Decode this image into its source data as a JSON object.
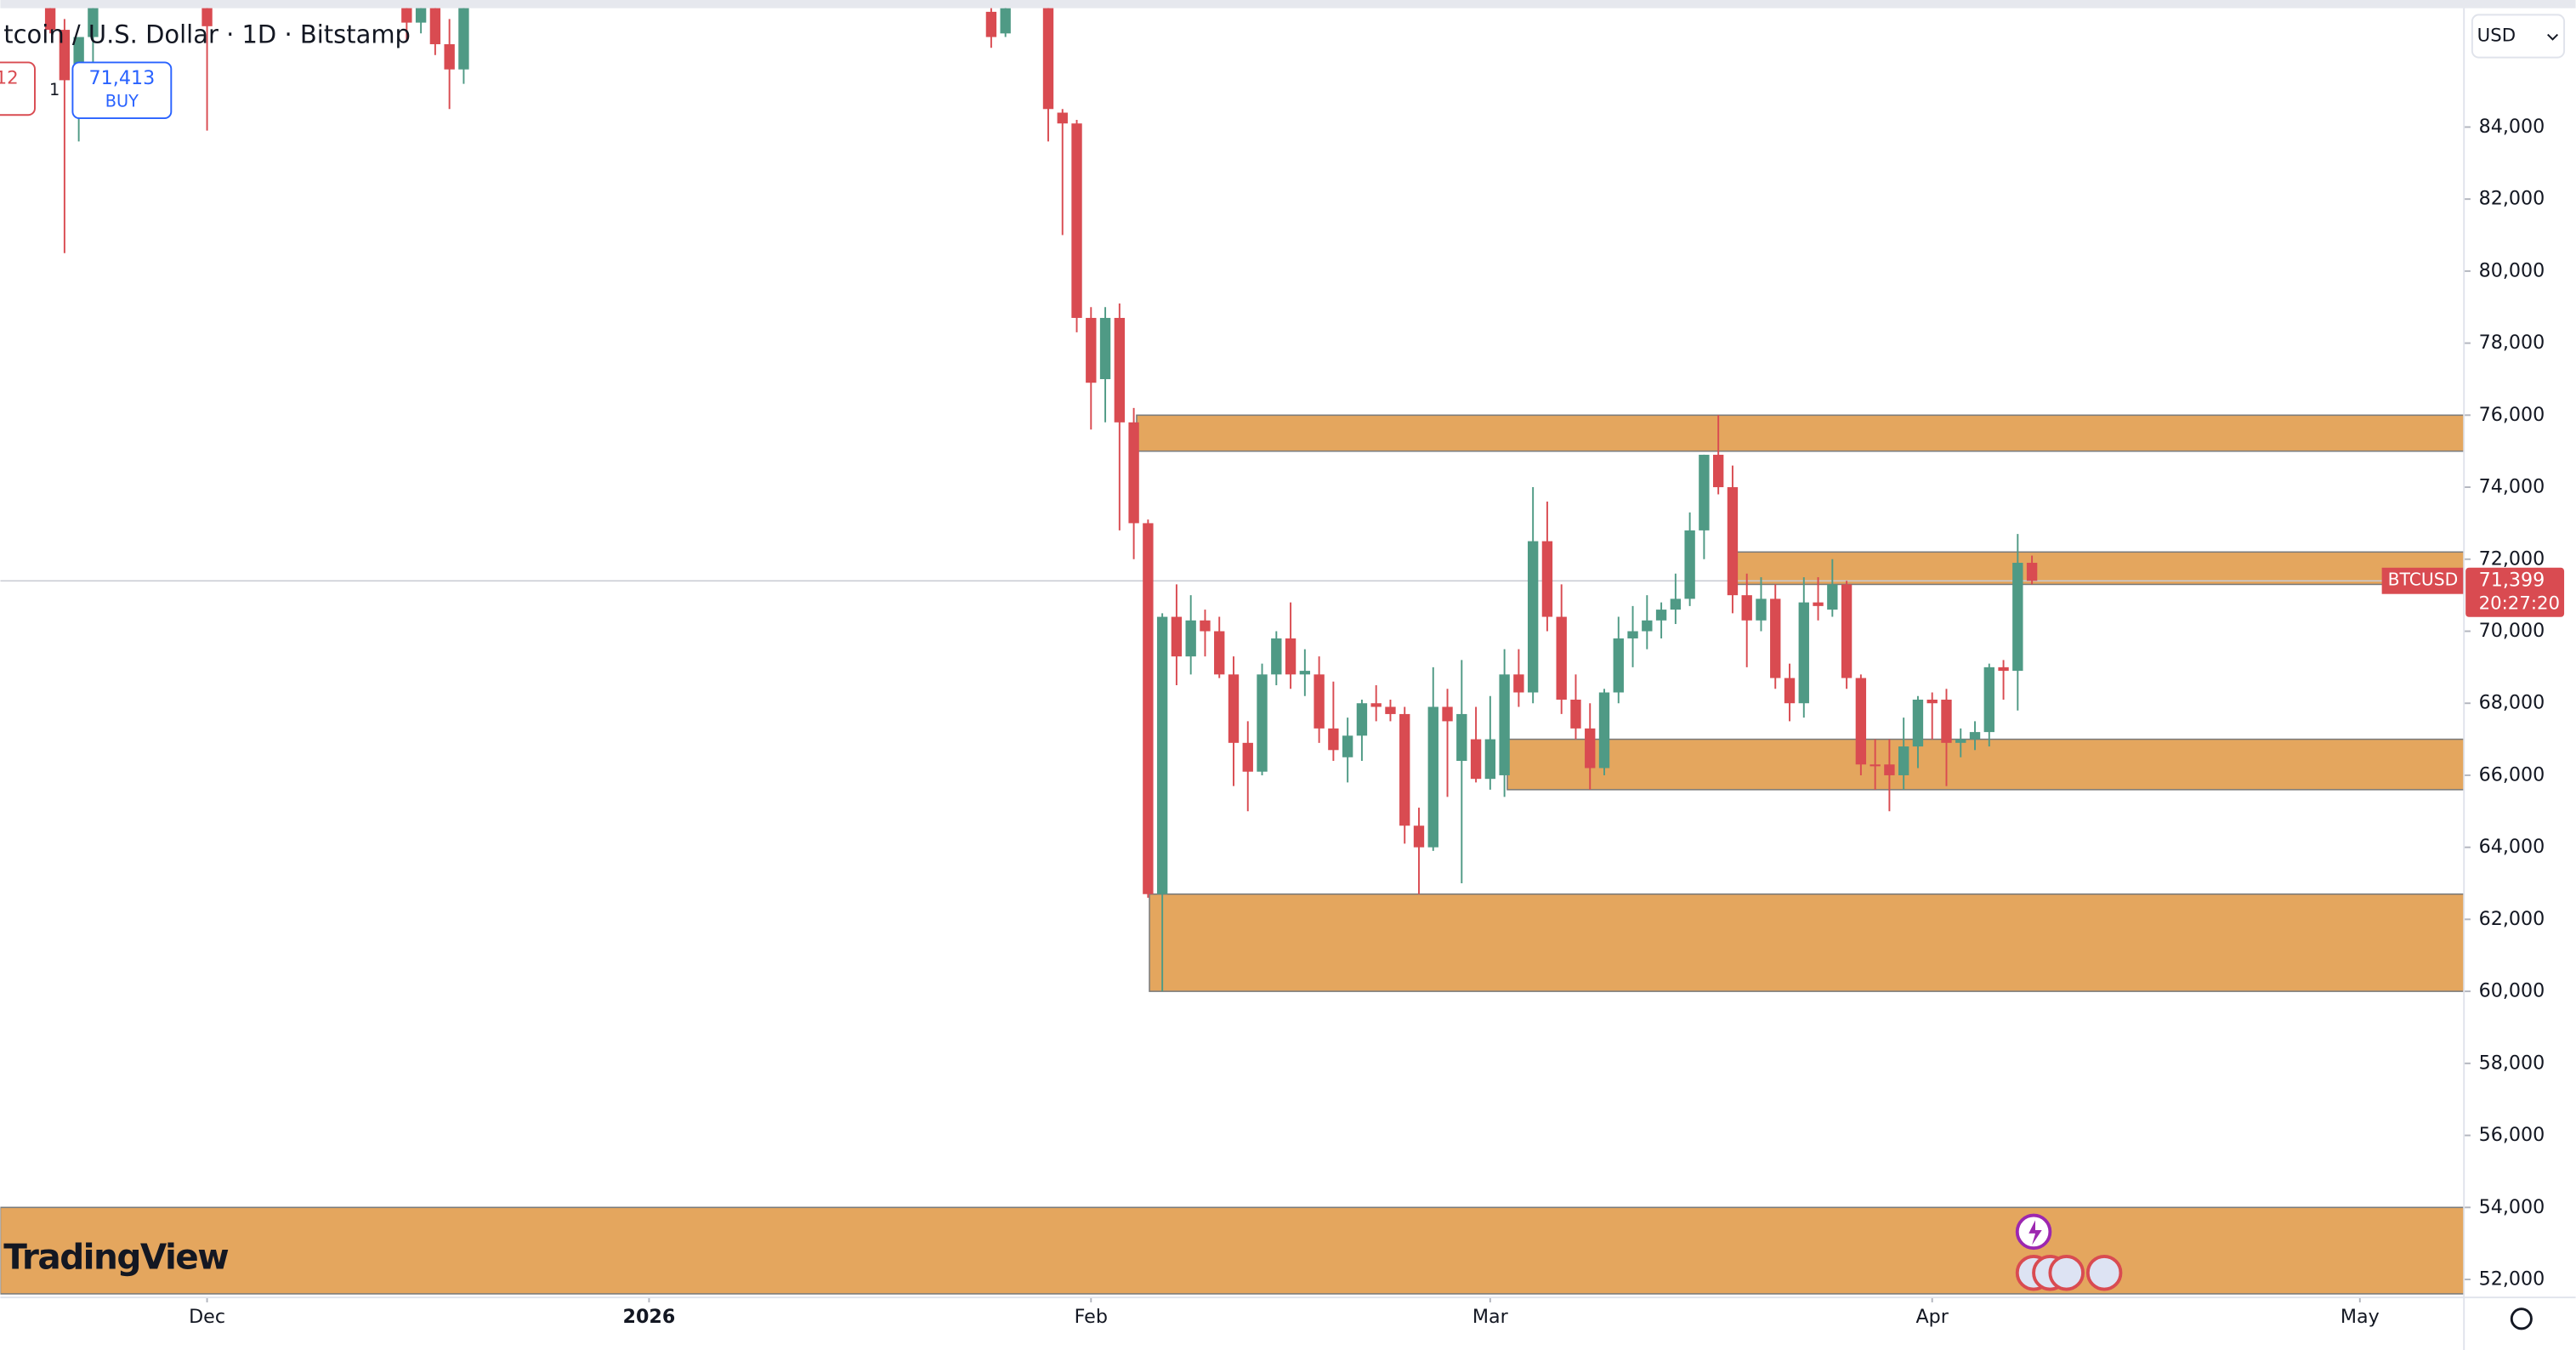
{
  "chart_data": {
    "type": "candlestick",
    "title": "tcoin / U.S. Dollar · 1D · Bitstamp",
    "currency": "USD",
    "up_color": "#4f9a85",
    "down_color": "#d94b51",
    "zone_color": "#e4a65e",
    "xlim": [
      -14.5,
      158.3
    ],
    "xticks": [
      {
        "value": 0,
        "label": "Dec"
      },
      {
        "value": 31,
        "label": "2026"
      },
      {
        "value": 62,
        "label": "Feb"
      },
      {
        "value": 90,
        "label": "Mar"
      },
      {
        "value": 121,
        "label": "Apr"
      },
      {
        "value": 151,
        "label": "May"
      }
    ],
    "ylim": [
      51500,
      87300
    ],
    "yticks": [
      {
        "value": 52000,
        "label": "52,000"
      },
      {
        "value": 54000,
        "label": "54,000"
      },
      {
        "value": 56000,
        "label": "56,000"
      },
      {
        "value": 58000,
        "label": "58,000"
      },
      {
        "value": 60000,
        "label": "60,000"
      },
      {
        "value": 62000,
        "label": "62,000"
      },
      {
        "value": 64000,
        "label": "64,000"
      },
      {
        "value": 66000,
        "label": "66,000"
      },
      {
        "value": 68000,
        "label": "68,000"
      },
      {
        "value": 70000,
        "label": "70,000"
      },
      {
        "value": 72000,
        "label": "72,000"
      },
      {
        "value": 74000,
        "label": "74,000"
      },
      {
        "value": 76000,
        "label": "76,000"
      },
      {
        "value": 78000,
        "label": "78,000"
      },
      {
        "value": 80000,
        "label": "80,000"
      },
      {
        "value": 82000,
        "label": "82,000"
      },
      {
        "value": 84000,
        "label": "84,000"
      }
    ],
    "candles": [
      [
        -11,
        87500,
        88000,
        86600,
        86700
      ],
      [
        -10,
        86700,
        87000,
        80500,
        85300
      ],
      [
        -9,
        85300,
        86200,
        83600,
        86500
      ],
      [
        -8,
        86500,
        87600,
        85800,
        87400
      ],
      [
        0,
        87400,
        88000,
        83900,
        86800
      ],
      [
        14,
        87600,
        88000,
        86400,
        86900
      ],
      [
        15,
        86900,
        87800,
        86600,
        87600
      ],
      [
        16,
        87600,
        88000,
        86000,
        86300
      ],
      [
        17,
        86300,
        87000,
        84500,
        85600
      ],
      [
        18,
        85600,
        87600,
        85200,
        87500
      ],
      [
        55,
        87200,
        87400,
        86200,
        86500
      ],
      [
        56,
        86600,
        87400,
        86500,
        87300
      ],
      [
        59,
        87400,
        87600,
        83600,
        84500
      ],
      [
        60,
        84400,
        84500,
        81000,
        84100
      ],
      [
        61,
        84100,
        84200,
        78300,
        78700
      ],
      [
        62,
        78700,
        79000,
        75600,
        76900
      ],
      [
        63,
        77000,
        79000,
        75800,
        78700
      ],
      [
        64,
        78700,
        79100,
        72800,
        75800
      ],
      [
        65,
        75800,
        76200,
        72000,
        73000
      ],
      [
        66,
        73000,
        73100,
        62600,
        62700
      ],
      [
        67,
        62700,
        70500,
        60000,
        70400
      ],
      [
        68,
        70400,
        71300,
        68500,
        69300
      ],
      [
        69,
        69300,
        71000,
        68800,
        70300
      ],
      [
        70,
        70300,
        70600,
        69300,
        70000
      ],
      [
        71,
        70000,
        70400,
        68700,
        68800
      ],
      [
        72,
        68800,
        69300,
        65700,
        66900
      ],
      [
        73,
        66900,
        67500,
        65000,
        66100
      ],
      [
        74,
        66100,
        69100,
        66000,
        68800
      ],
      [
        75,
        68800,
        70000,
        68500,
        69800
      ],
      [
        76,
        69800,
        70800,
        68400,
        68800
      ],
      [
        77,
        68800,
        69500,
        68200,
        68900
      ],
      [
        78,
        68800,
        69300,
        66900,
        67300
      ],
      [
        79,
        67300,
        68600,
        66400,
        66700
      ],
      [
        80,
        66500,
        67600,
        65800,
        67100
      ],
      [
        81,
        67100,
        68100,
        66400,
        68000
      ],
      [
        82,
        68000,
        68500,
        67500,
        67900
      ],
      [
        83,
        67900,
        68100,
        67500,
        67700
      ],
      [
        84,
        67700,
        67900,
        64100,
        64600
      ],
      [
        85,
        64600,
        65100,
        62700,
        64000
      ],
      [
        86,
        64000,
        69000,
        63900,
        67900
      ],
      [
        87,
        67900,
        68400,
        65400,
        67500
      ],
      [
        88,
        66400,
        69200,
        63000,
        67700
      ],
      [
        89,
        67000,
        67900,
        65800,
        65900
      ],
      [
        90,
        65900,
        68200,
        65600,
        67000
      ],
      [
        91,
        66000,
        69500,
        65400,
        68800
      ],
      [
        92,
        68800,
        69500,
        67900,
        68300
      ],
      [
        93,
        68300,
        74000,
        68000,
        72500
      ],
      [
        94,
        72500,
        73600,
        70000,
        70400
      ],
      [
        95,
        70400,
        71300,
        67700,
        68100
      ],
      [
        96,
        68100,
        68800,
        67000,
        67300
      ],
      [
        97,
        67300,
        68000,
        65600,
        66200
      ],
      [
        98,
        66200,
        68400,
        66000,
        68300
      ],
      [
        99,
        68300,
        70400,
        68000,
        69800
      ],
      [
        100,
        69800,
        70700,
        69000,
        70000
      ],
      [
        101,
        70000,
        71000,
        69500,
        70300
      ],
      [
        102,
        70300,
        70800,
        69800,
        70600
      ],
      [
        103,
        70600,
        71600,
        70200,
        70900
      ],
      [
        104,
        70900,
        73300,
        70700,
        72800
      ],
      [
        105,
        72800,
        74900,
        72000,
        74900
      ],
      [
        106,
        74900,
        76000,
        73800,
        74000
      ],
      [
        107,
        74000,
        74600,
        70500,
        71000
      ],
      [
        108,
        71000,
        71600,
        69000,
        70300
      ],
      [
        109,
        70300,
        71500,
        70000,
        70900
      ],
      [
        110,
        70900,
        71300,
        68400,
        68700
      ],
      [
        111,
        68700,
        69100,
        67500,
        68000
      ],
      [
        112,
        68000,
        71500,
        67600,
        70800
      ],
      [
        113,
        70800,
        71500,
        70300,
        70700
      ],
      [
        114,
        70600,
        72000,
        70400,
        71300
      ],
      [
        115,
        71300,
        71400,
        68400,
        68700
      ],
      [
        116,
        68700,
        68800,
        66000,
        66300
      ],
      [
        117,
        66300,
        67000,
        65600,
        66250
      ],
      [
        118,
        66300,
        67000,
        65000,
        66000
      ],
      [
        119,
        66000,
        67600,
        65600,
        66800
      ],
      [
        120,
        66800,
        68200,
        66200,
        68100
      ],
      [
        121,
        68100,
        68300,
        67000,
        68000
      ],
      [
        122,
        68100,
        68400,
        65700,
        66900
      ],
      [
        123,
        66900,
        67300,
        66500,
        67000
      ],
      [
        124,
        67000,
        67500,
        66700,
        67200
      ],
      [
        125,
        67200,
        69100,
        66800,
        69000
      ],
      [
        126,
        69000,
        69200,
        68100,
        68900
      ],
      [
        127,
        68900,
        72700,
        67800,
        71900
      ],
      [
        128,
        71900,
        72100,
        71300,
        71399
      ]
    ],
    "zones": [
      [
        65.2,
        75000,
        76000
      ],
      [
        107.1,
        71300,
        72200
      ],
      [
        91.2,
        65600,
        67000
      ],
      [
        66.1,
        60000,
        62700
      ],
      [
        -14.5,
        51600,
        54000
      ]
    ],
    "last_price": {
      "symbol": "BTCUSD",
      "value": 71399,
      "label": "71,399",
      "countdown": "20:27:20"
    },
    "trade_panel": {
      "sell": "12",
      "spread": "1",
      "buy": "71,413",
      "buy_label": "BUY"
    },
    "logo": "TradingView"
  }
}
